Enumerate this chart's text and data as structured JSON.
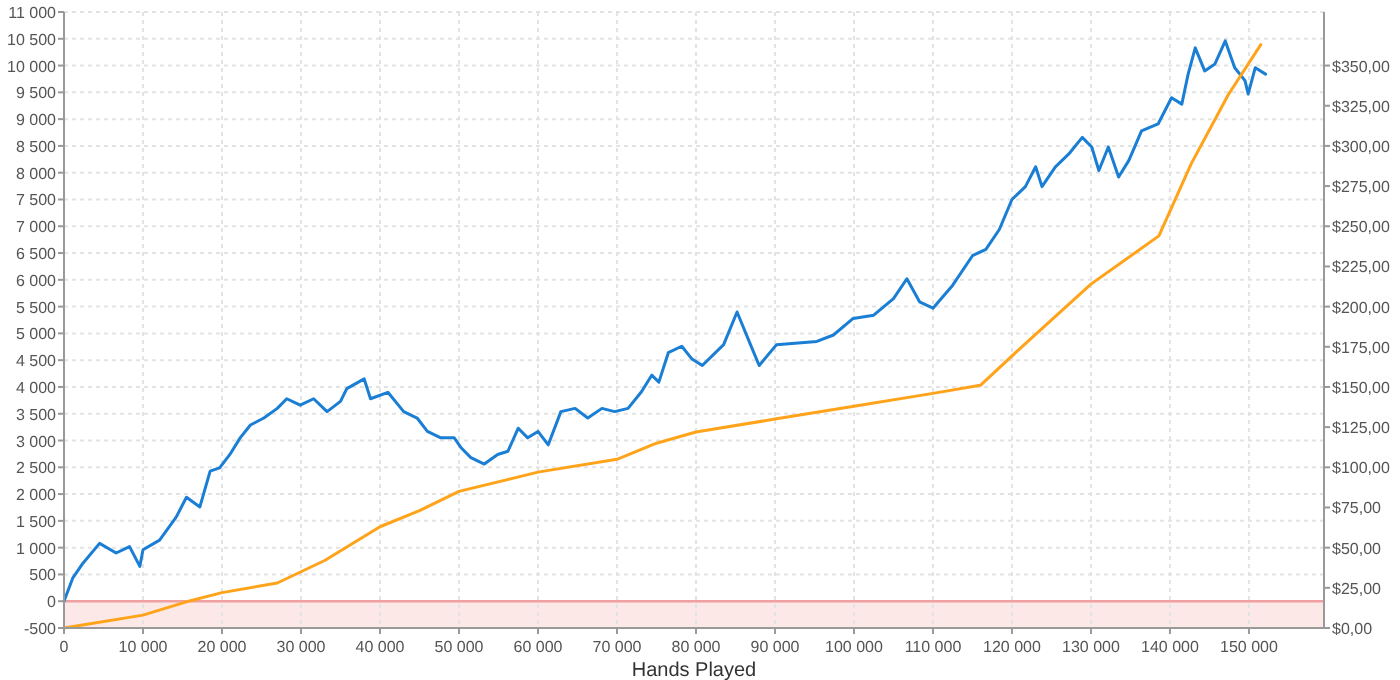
{
  "chart_data": {
    "type": "line",
    "xlabel": "Hands Played",
    "xlim": [
      0,
      159500
    ],
    "ylim": [
      -500,
      11000
    ],
    "y2lim": [
      0,
      383.33
    ],
    "xticks": [
      0,
      {
        "value": 10000,
        "label": "10 000"
      },
      {
        "value": 20000,
        "label": "20 000"
      },
      {
        "value": 30000,
        "label": "30 000"
      },
      {
        "value": 40000,
        "label": "40 000"
      },
      {
        "value": 50000,
        "label": "50 000"
      },
      {
        "value": 60000,
        "label": "60 000"
      },
      {
        "value": 70000,
        "label": "70 000"
      },
      {
        "value": 80000,
        "label": "80 000"
      },
      {
        "value": 90000,
        "label": "90 000"
      },
      {
        "value": 100000,
        "label": "100 000"
      },
      {
        "value": 110000,
        "label": "110 000"
      },
      {
        "value": 120000,
        "label": "120 000"
      },
      {
        "value": 130000,
        "label": "130 000"
      },
      {
        "value": 140000,
        "label": "140 000"
      },
      {
        "value": 150000,
        "label": "150 000"
      }
    ],
    "yticks": [
      -500,
      0,
      500,
      {
        "value": 1000,
        "label": "1 000"
      },
      {
        "value": 1500,
        "label": "1 500"
      },
      {
        "value": 2000,
        "label": "2 000"
      },
      {
        "value": 2500,
        "label": "2 500"
      },
      {
        "value": 3000,
        "label": "3 000"
      },
      {
        "value": 3500,
        "label": "3 500"
      },
      {
        "value": 4000,
        "label": "4 000"
      },
      {
        "value": 4500,
        "label": "4 500"
      },
      {
        "value": 5000,
        "label": "5 000"
      },
      {
        "value": 5500,
        "label": "5 500"
      },
      {
        "value": 6000,
        "label": "6 000"
      },
      {
        "value": 6500,
        "label": "6 500"
      },
      {
        "value": 7000,
        "label": "7 000"
      },
      {
        "value": 7500,
        "label": "7 500"
      },
      {
        "value": 8000,
        "label": "8 000"
      },
      {
        "value": 8500,
        "label": "8 500"
      },
      {
        "value": 9000,
        "label": "9 000"
      },
      {
        "value": 9500,
        "label": "9 500"
      },
      {
        "value": 10000,
        "label": "10 000"
      },
      {
        "value": 10500,
        "label": "10 500"
      },
      {
        "value": 11000,
        "label": "11 000"
      }
    ],
    "y2ticks": [
      {
        "value": 0,
        "label": "$0,00"
      },
      {
        "value": 25,
        "label": "$25,00"
      },
      {
        "value": 50,
        "label": "$50,00"
      },
      {
        "value": 75,
        "label": "$75,00"
      },
      {
        "value": 100,
        "label": "$100,00"
      },
      {
        "value": 125,
        "label": "$125,00"
      },
      {
        "value": 150,
        "label": "$150,00"
      },
      {
        "value": 175,
        "label": "$175,00"
      },
      {
        "value": 200,
        "label": "$200,00"
      },
      {
        "value": 225,
        "label": "$225,00"
      },
      {
        "value": 250,
        "label": "$250,00"
      },
      {
        "value": 275,
        "label": "$275,00"
      },
      {
        "value": 300,
        "label": "$300,00"
      },
      {
        "value": 325,
        "label": "$325,00"
      },
      {
        "value": 350,
        "label": "$350,00"
      }
    ],
    "grid": true,
    "line_style": "solid",
    "bands": [
      {
        "axis": "y",
        "from": -500,
        "to": 0,
        "color": "#fde8e8"
      }
    ],
    "ref_lines": [
      {
        "axis": "y",
        "value": 0,
        "color": "#f0a0a0"
      }
    ],
    "series": [
      {
        "color": "#1a7fd4",
        "x": [
          0,
          1100,
          2400,
          4500,
          6600,
          8300,
          9600,
          10000,
          12100,
          14200,
          15500,
          17200,
          18500,
          19700,
          21000,
          22300,
          23600,
          25300,
          27000,
          28200,
          29900,
          31600,
          33300,
          35000,
          35800,
          38000,
          38800,
          41000,
          43000,
          44700,
          46000,
          47700,
          49400,
          50300,
          51500,
          53200,
          54900,
          56200,
          57500,
          58700,
          60000,
          61300,
          62900,
          64700,
          66300,
          68100,
          69700,
          71400,
          73100,
          74400,
          75300,
          76500,
          78200,
          79500,
          80800,
          83500,
          85200,
          86900,
          88000,
          90200,
          95300,
          97400,
          99900,
          102500,
          105000,
          106700,
          108300,
          110000,
          112500,
          115000,
          116700,
          118400,
          120000,
          121700,
          123000,
          123800,
          125500,
          127200,
          128900,
          130100,
          131000,
          132200,
          133500,
          134800,
          136400,
          138500,
          140200,
          141500,
          142300,
          143200,
          144400,
          145700,
          147000,
          148200,
          149500,
          149900,
          150800,
          152100
        ],
        "values": [
          0,
          430,
          710,
          1080,
          900,
          1020,
          650,
          960,
          1140,
          1570,
          1940,
          1760,
          2430,
          2490,
          2740,
          3050,
          3290,
          3420,
          3600,
          3780,
          3660,
          3780,
          3540,
          3730,
          3970,
          4150,
          3780,
          3900,
          3540,
          3420,
          3170,
          3050,
          3050,
          2860,
          2680,
          2560,
          2740,
          2800,
          3230,
          3050,
          3170,
          2920,
          3540,
          3600,
          3420,
          3600,
          3540,
          3600,
          3910,
          4220,
          4090,
          4640,
          4760,
          4520,
          4400,
          4790,
          5400,
          4790,
          4400,
          4790,
          4850,
          4970,
          5280,
          5340,
          5650,
          6020,
          5590,
          5470,
          5900,
          6450,
          6570,
          6940,
          7500,
          7740,
          8110,
          7740,
          8110,
          8350,
          8660,
          8480,
          8040,
          8480,
          7920,
          8230,
          8780,
          8910,
          9400,
          9280,
          9840,
          10330,
          9900,
          10030,
          10460,
          9960,
          9720,
          9470,
          9960,
          9840
        ]
      },
      {
        "color": "#ffa31a",
        "axis": "y2",
        "x": [
          0,
          10000,
          16000,
          20000,
          27000,
          33000,
          40000,
          45000,
          50000,
          60000,
          70000,
          75000,
          80000,
          90000,
          100000,
          110000,
          116000,
          121250,
          130000,
          138600,
          142700,
          147400,
          151500
        ],
        "values": [
          0,
          8,
          17,
          22,
          28,
          42,
          63,
          73,
          85,
          97,
          105,
          115,
          122,
          130,
          138,
          146,
          151,
          175,
          214,
          244,
          289,
          332,
          363
        ]
      }
    ]
  }
}
